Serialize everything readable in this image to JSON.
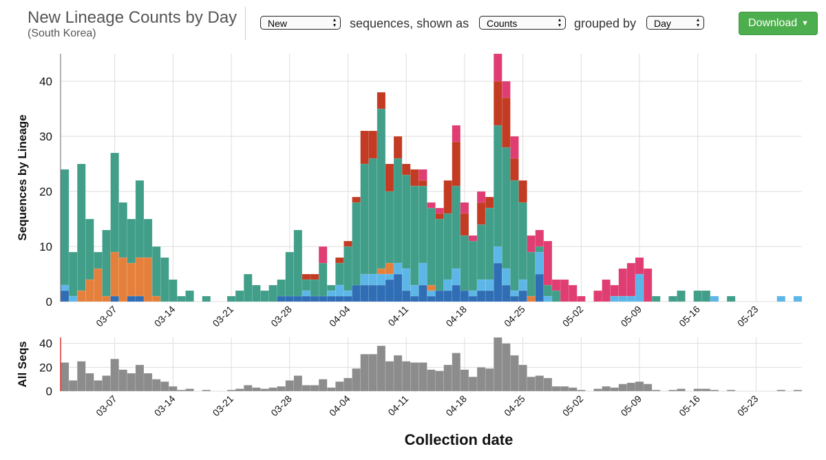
{
  "header": {
    "title": "New Lineage Counts by Day",
    "subtitle": "(South Korea)",
    "select_1": "New",
    "text_1": "sequences, shown as",
    "select_2": "Counts",
    "text_2": "grouped by",
    "select_3": "Day",
    "button": "Download"
  },
  "chart_data": [
    {
      "type": "bar",
      "stacked": true,
      "ylabel": "Sequences by Lineage",
      "xlabel": "Collection date",
      "categories": [
        null,
        null,
        null,
        null,
        null,
        null,
        "03-07",
        null,
        null,
        null,
        null,
        null,
        null,
        "03-14",
        null,
        null,
        null,
        null,
        null,
        null,
        "03-21",
        null,
        null,
        null,
        null,
        null,
        null,
        "03-28",
        null,
        null,
        null,
        null,
        null,
        null,
        "04-04",
        null,
        null,
        null,
        null,
        null,
        null,
        "04-11",
        null,
        null,
        null,
        null,
        null,
        null,
        "04-18",
        null,
        null,
        null,
        null,
        null,
        null,
        "04-25",
        null,
        null,
        null,
        null,
        null,
        null,
        "05-02",
        null,
        null,
        null,
        null,
        null,
        null,
        "05-09",
        null,
        null,
        null,
        null,
        null,
        null,
        "05-16",
        null,
        null,
        null,
        null,
        null,
        null,
        "05-23",
        null,
        null,
        null,
        null,
        null
      ],
      "series": [
        {
          "color": "#2f6db5",
          "values": [
            2,
            0,
            0,
            0,
            0,
            0,
            1,
            0,
            1,
            1,
            0,
            0,
            0,
            0,
            0,
            0,
            0,
            0,
            0,
            0,
            0,
            0,
            0,
            0,
            0,
            0,
            1,
            1,
            1,
            1,
            1,
            1,
            1,
            1,
            1,
            3,
            3,
            3,
            3,
            4,
            5,
            2,
            1,
            3,
            1,
            2,
            2,
            3,
            2,
            1,
            2,
            2,
            7,
            3,
            1,
            2,
            0,
            5,
            0,
            0,
            0,
            0,
            0,
            0,
            0,
            0,
            0,
            0,
            0,
            0,
            0,
            0,
            0,
            0,
            0,
            0,
            0,
            0,
            0,
            0,
            0,
            0,
            0,
            0,
            0,
            0,
            0,
            0,
            0
          ]
        },
        {
          "color": "#5cb6e8",
          "values": [
            1,
            1,
            0,
            0,
            0,
            0,
            0,
            0,
            0,
            0,
            0,
            0,
            0,
            0,
            0,
            0,
            0,
            0,
            0,
            0,
            0,
            0,
            0,
            0,
            0,
            0,
            0,
            0,
            0,
            1,
            0,
            0,
            1,
            2,
            1,
            0,
            2,
            2,
            2,
            1,
            2,
            4,
            2,
            4,
            1,
            0,
            2,
            3,
            0,
            1,
            2,
            2,
            3,
            3,
            1,
            2,
            0,
            4,
            1,
            0,
            0,
            0,
            0,
            0,
            0,
            0,
            1,
            1,
            1,
            5,
            0,
            0,
            0,
            0,
            0,
            0,
            0,
            0,
            1,
            0,
            0,
            0,
            0,
            0,
            0,
            0,
            1,
            0,
            1
          ]
        },
        {
          "color": "#e5803c",
          "values": [
            0,
            0,
            2,
            4,
            6,
            1,
            8,
            8,
            6,
            7,
            8,
            1,
            0,
            0,
            0,
            0,
            0,
            0,
            0,
            0,
            0,
            0,
            0,
            0,
            0,
            0,
            0,
            0,
            0,
            0,
            0,
            0,
            0,
            0,
            0,
            0,
            0,
            0,
            1,
            2,
            0,
            0,
            0,
            0,
            1,
            0,
            0,
            0,
            0,
            0,
            0,
            0,
            0,
            0,
            0,
            0,
            1,
            0,
            0,
            0,
            0,
            0,
            0,
            0,
            0,
            0,
            0,
            0,
            0,
            0,
            0,
            0,
            0,
            0,
            0,
            0,
            0,
            0,
            0,
            0,
            0,
            0,
            0,
            0,
            0,
            0,
            0,
            0,
            0
          ]
        },
        {
          "color": "#419e89",
          "values": [
            21,
            8,
            23,
            11,
            3,
            12,
            18,
            10,
            8,
            14,
            7,
            9,
            8,
            4,
            1,
            2,
            0,
            1,
            0,
            0,
            1,
            2,
            5,
            3,
            2,
            3,
            3,
            8,
            12,
            2,
            3,
            6,
            1,
            4,
            8,
            15,
            20,
            21,
            29,
            13,
            19,
            17,
            18,
            14,
            14,
            13,
            12,
            15,
            10,
            9,
            10,
            13,
            22,
            22,
            20,
            14,
            8,
            1,
            2,
            2,
            0,
            0,
            0,
            0,
            0,
            0,
            0,
            0,
            0,
            0,
            0,
            1,
            0,
            1,
            2,
            0,
            2,
            2,
            0,
            0,
            1,
            0,
            0,
            0,
            0,
            0,
            0,
            0,
            0
          ]
        },
        {
          "color": "#c23b22",
          "values": [
            0,
            0,
            0,
            0,
            0,
            0,
            0,
            0,
            0,
            0,
            0,
            0,
            0,
            0,
            0,
            0,
            0,
            0,
            0,
            0,
            0,
            0,
            0,
            0,
            0,
            0,
            0,
            0,
            0,
            1,
            1,
            0,
            0,
            1,
            1,
            1,
            6,
            5,
            3,
            5,
            4,
            2,
            3,
            1,
            0,
            1,
            6,
            8,
            4,
            0,
            4,
            2,
            8,
            9,
            4,
            4,
            0,
            0,
            0,
            0,
            0,
            0,
            0,
            0,
            0,
            0,
            0,
            0,
            0,
            0,
            0,
            0,
            0,
            0,
            0,
            0,
            0,
            0,
            0,
            0,
            0,
            0,
            0,
            0,
            0,
            0,
            0,
            0,
            0
          ]
        },
        {
          "color": "#e03d72",
          "values": [
            0,
            0,
            0,
            0,
            0,
            0,
            0,
            0,
            0,
            0,
            0,
            0,
            0,
            0,
            0,
            0,
            0,
            0,
            0,
            0,
            0,
            0,
            0,
            0,
            0,
            0,
            0,
            0,
            0,
            0,
            0,
            3,
            0,
            0,
            0,
            0,
            0,
            0,
            0,
            0,
            0,
            0,
            0,
            2,
            1,
            1,
            0,
            3,
            2,
            1,
            2,
            0,
            5,
            3,
            4,
            0,
            3,
            3,
            8,
            2,
            4,
            3,
            1,
            0,
            2,
            4,
            2,
            5,
            6,
            3,
            6,
            0,
            0,
            0,
            0,
            0,
            0,
            0,
            0,
            0,
            0,
            0,
            0,
            0,
            0,
            0,
            0,
            0,
            0
          ]
        }
      ],
      "ylim": [
        0,
        45
      ],
      "yticks": [
        0,
        10,
        20,
        30,
        40
      ],
      "grid": true
    },
    {
      "type": "bar",
      "ylabel": "All Seqs",
      "color": "#8c8c8c",
      "categories": [
        null,
        null,
        null,
        null,
        null,
        null,
        "03-07",
        null,
        null,
        null,
        null,
        null,
        null,
        "03-14",
        null,
        null,
        null,
        null,
        null,
        null,
        "03-21",
        null,
        null,
        null,
        null,
        null,
        null,
        "03-28",
        null,
        null,
        null,
        null,
        null,
        null,
        "04-04",
        null,
        null,
        null,
        null,
        null,
        null,
        "04-11",
        null,
        null,
        null,
        null,
        null,
        null,
        "04-18",
        null,
        null,
        null,
        null,
        null,
        null,
        "04-25",
        null,
        null,
        null,
        null,
        null,
        null,
        "05-02",
        null,
        null,
        null,
        null,
        null,
        null,
        "05-09",
        null,
        null,
        null,
        null,
        null,
        null,
        "05-16",
        null,
        null,
        null,
        null,
        null,
        null,
        "05-23",
        null,
        null,
        null,
        null,
        null
      ],
      "values": [
        24,
        9,
        25,
        15,
        9,
        13,
        27,
        18,
        15,
        22,
        15,
        10,
        8,
        4,
        1,
        2,
        0,
        1,
        0,
        0,
        1,
        2,
        5,
        3,
        2,
        3,
        4,
        9,
        13,
        5,
        5,
        10,
        3,
        8,
        11,
        19,
        31,
        31,
        38,
        25,
        30,
        25,
        24,
        24,
        18,
        17,
        22,
        32,
        18,
        12,
        20,
        19,
        45,
        40,
        30,
        22,
        12,
        13,
        11,
        4,
        4,
        3,
        1,
        0,
        2,
        4,
        3,
        6,
        7,
        8,
        6,
        1,
        0,
        1,
        2,
        0,
        2,
        2,
        1,
        0,
        1,
        0,
        0,
        0,
        0,
        0,
        1,
        0,
        1
      ],
      "ylim": [
        0,
        45
      ],
      "yticks": [
        0,
        20,
        40
      ],
      "grid": true
    }
  ]
}
